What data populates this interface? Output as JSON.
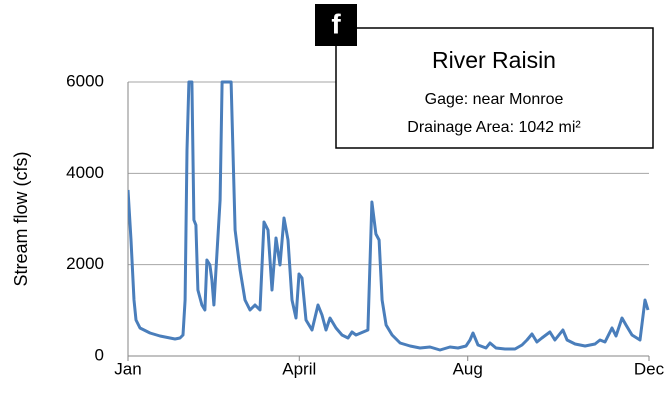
{
  "chart_data": {
    "type": "line",
    "panel_label": "f",
    "title": "River Raisin",
    "annotations": [
      "Gage: near Monroe",
      "Drainage Area: 1042 mi²"
    ],
    "ylabel": "Stream flow (cfs)",
    "x": [
      0,
      2.1,
      4.2,
      5.6,
      8.4,
      15.4,
      22.4,
      29.4,
      32.9,
      36.4,
      38.5,
      40,
      41.3,
      42.7,
      44.8,
      46.2,
      47.6,
      49,
      51.8,
      53.9,
      55.3,
      57.4,
      58.8,
      60.2,
      64.5,
      65.9,
      72.2,
      75,
      78.5,
      82,
      85.5,
      89,
      92.5,
      95.3,
      98.1,
      100.9,
      103.7,
      106.5,
      109.3,
      112.1,
      114.9,
      117.7,
      119.8,
      121.9,
      124.7,
      128.9,
      133.1,
      135.9,
      138.7,
      141.5,
      145.7,
      149.9,
      154.1,
      156.9,
      159.7,
      168.1,
      170.9,
      173.7,
      175.9,
      178,
      180.8,
      185,
      190.6,
      197.6,
      204.6,
      211.6,
      218.6,
      225.6,
      231.2,
      236.8,
      239.6,
      241.7,
      245.2,
      250.8,
      253.6,
      257.8,
      264.1,
      271.1,
      276,
      279.5,
      283,
      286.5,
      290,
      295.6,
      299.1,
      304.7,
      307.6,
      313.2,
      320.2,
      327.2,
      330.7,
      334.2,
      339.1,
      341.9,
      346.1,
      348.9,
      353.1,
      358.7,
      362.2,
      364.3
    ],
    "series": [
      {
        "name": "River Raisin",
        "color": "#4a7ebb",
        "values": [
          3635,
          2540,
          1226,
          788,
          613,
          504,
          438,
          394,
          372,
          394,
          460,
          1226,
          4511,
          6000,
          6000,
          2978,
          2869,
          1445,
          1117,
          1007,
          2102,
          1993,
          1664,
          1117,
          3416,
          6000,
          6000,
          2759,
          1883,
          1226,
          1007,
          1117,
          1007,
          2934,
          2759,
          1445,
          2584,
          1993,
          3022,
          2540,
          1226,
          832,
          1796,
          1708,
          788,
          569,
          1117,
          898,
          569,
          832,
          613,
          460,
          394,
          526,
          460,
          569,
          3372,
          2672,
          2540,
          1226,
          679,
          460,
          285,
          219,
          175,
          197,
          131,
          197,
          175,
          219,
          350,
          504,
          241,
          175,
          285,
          175,
          153,
          153,
          241,
          350,
          482,
          307,
          394,
          526,
          350,
          569,
          350,
          263,
          219,
          263,
          350,
          307,
          613,
          438,
          832,
          679,
          460,
          350,
          1226,
          1007
        ]
      }
    ],
    "xlim": [
      0,
      365
    ],
    "xticks": [
      {
        "value": 0,
        "label": "Jan"
      },
      {
        "value": 120,
        "label": "April"
      },
      {
        "value": 238,
        "label": "Aug"
      },
      {
        "value": 365,
        "label": "Dec"
      }
    ],
    "ylim": [
      0,
      6000
    ],
    "yticks": [
      0,
      2000,
      4000,
      6000
    ],
    "grid": true
  }
}
